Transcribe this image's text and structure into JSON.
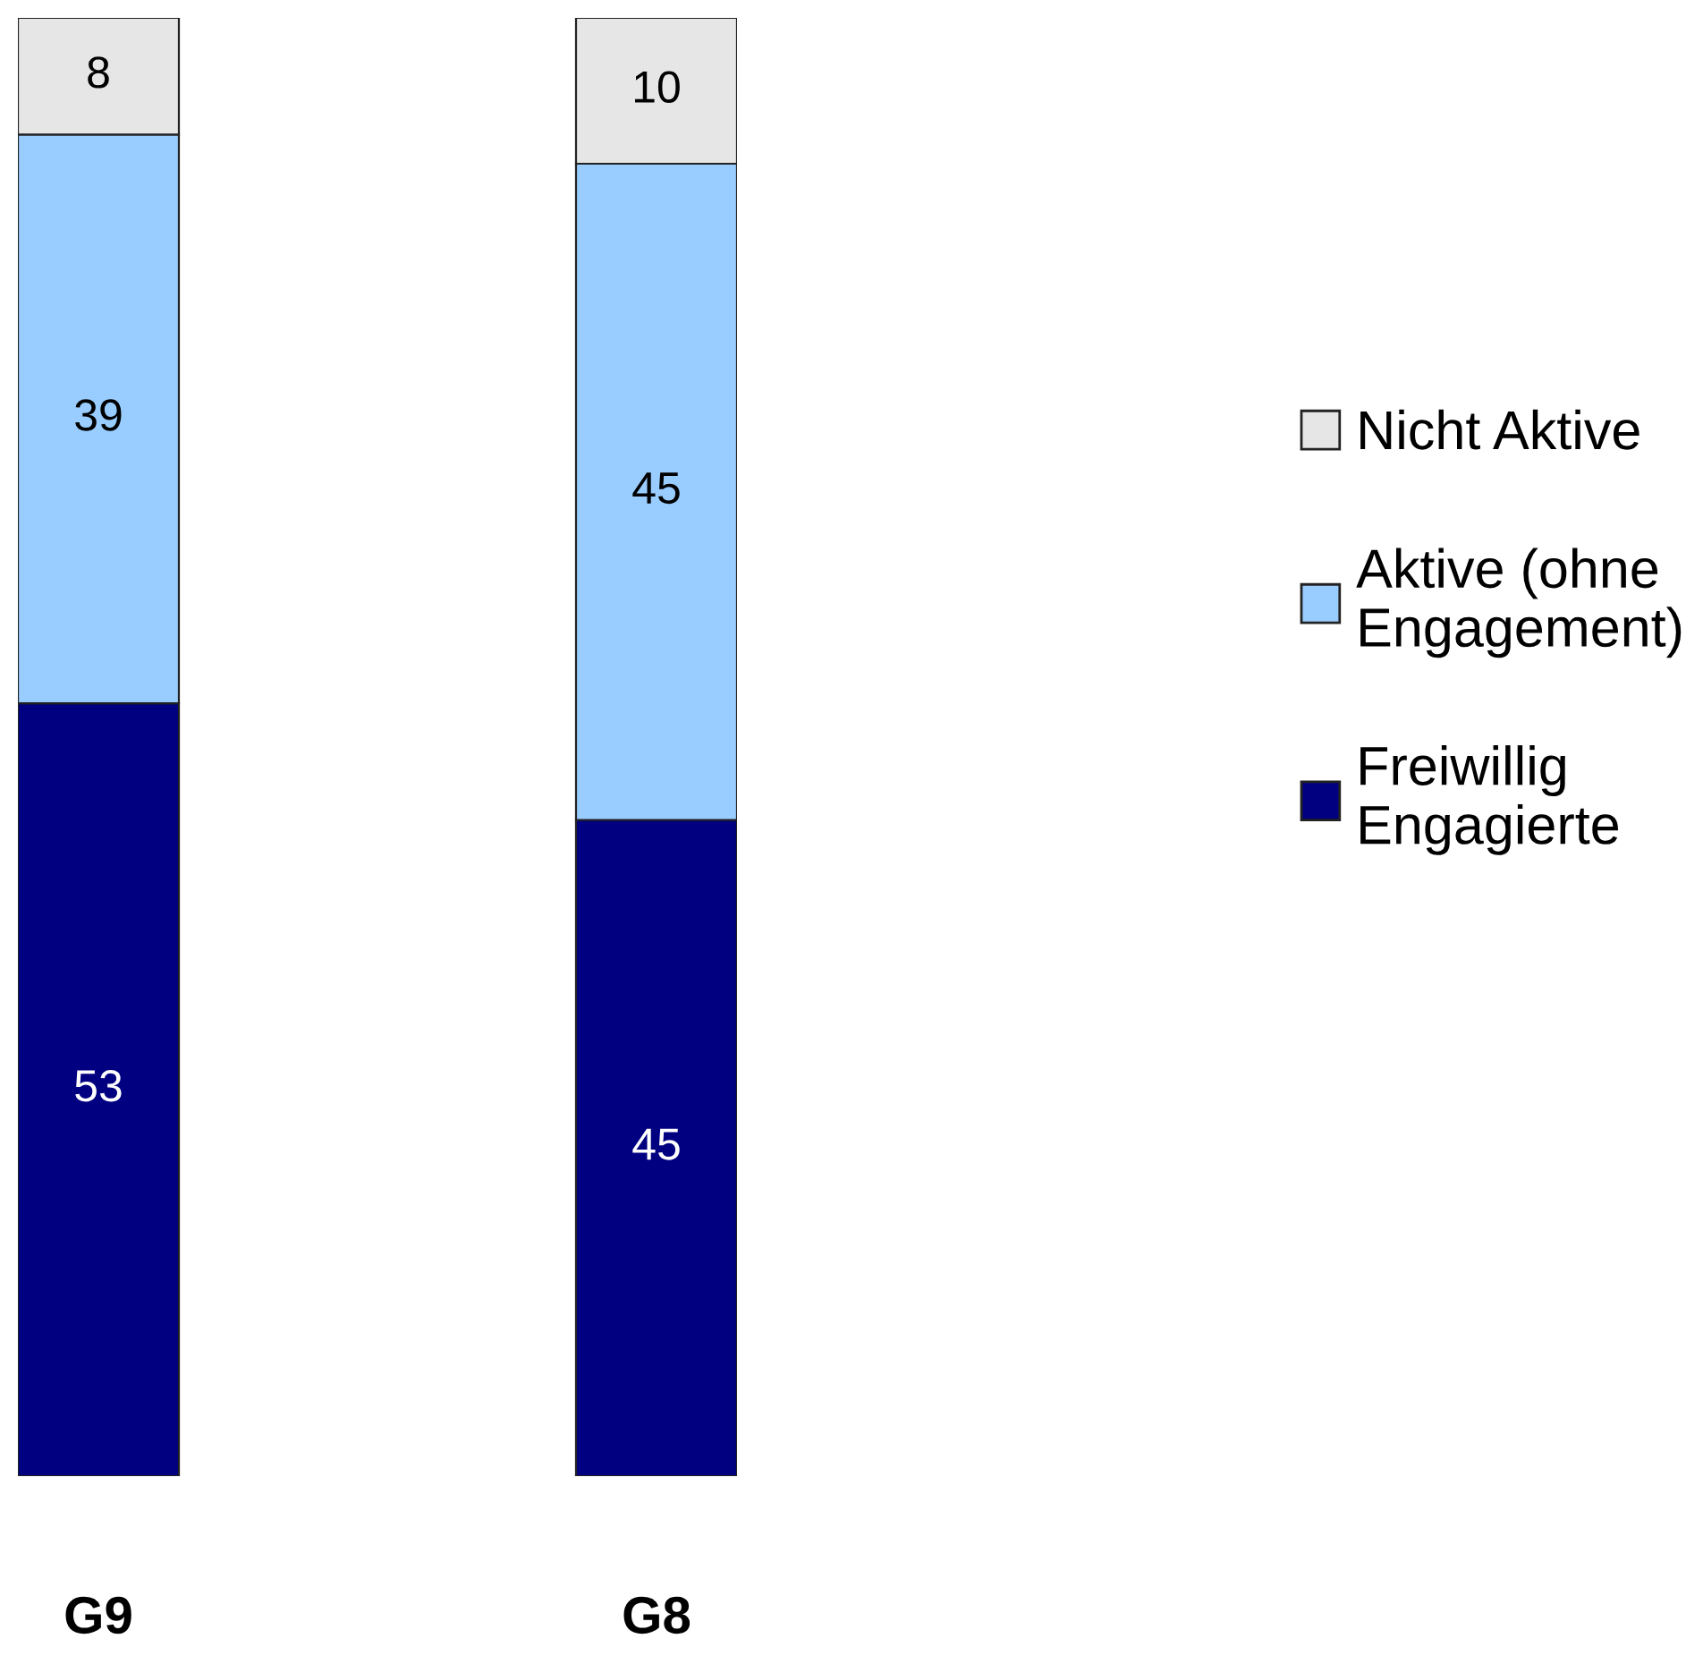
{
  "chart_data": {
    "type": "bar",
    "stacked": true,
    "categories": [
      "G9",
      "G8"
    ],
    "series": [
      {
        "name": "Freiwillig\nEngagierte",
        "color": "#000080",
        "values": [
          53,
          45
        ]
      },
      {
        "name": "Aktive (ohne\nEngagement)",
        "color": "#99ccff",
        "values": [
          39,
          45
        ]
      },
      {
        "name": "Nicht Aktive",
        "color": "#e6e6e6",
        "values": [
          8,
          10
        ]
      }
    ],
    "ylim": [
      0,
      100
    ],
    "data_labels": true,
    "legend": "right",
    "grid": false,
    "tick_labels": "x"
  }
}
